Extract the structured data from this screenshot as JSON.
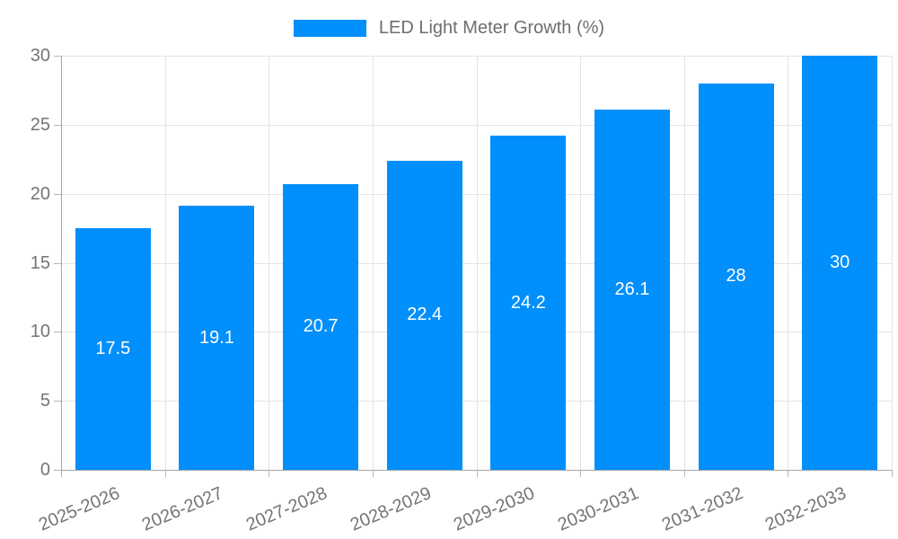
{
  "chart_data": {
    "type": "bar",
    "title": "LED Light Meter Growth (%)",
    "series": [
      {
        "name": "LED Light Meter Growth (%)",
        "values": [
          17.5,
          19.1,
          20.7,
          22.4,
          24.2,
          26.1,
          28,
          30
        ]
      }
    ],
    "value_labels": [
      "17.5",
      "19.1",
      "20.7",
      "22.4",
      "24.2",
      "26.1",
      "28",
      "30"
    ],
    "categories": [
      "2025-2026",
      "2026-2027",
      "2027-2028",
      "2028-2029",
      "2029-2030",
      "2030-2031",
      "2031-2032",
      "2032-2033"
    ],
    "xlabel": "",
    "ylabel": "",
    "ylim": [
      0,
      30
    ],
    "yticks": [
      0,
      5,
      10,
      15,
      20,
      25,
      30
    ],
    "grid": true,
    "legend_position": "top-center",
    "colors": {
      "bar": "#008ffb",
      "bar_value_text": "#ffffff",
      "axis_text": "#757575",
      "legend_text": "#6e6e6e",
      "gridline": "#e4e4e4",
      "axis_line": "#a6a6a6",
      "tick": "#b6b6b6"
    }
  }
}
